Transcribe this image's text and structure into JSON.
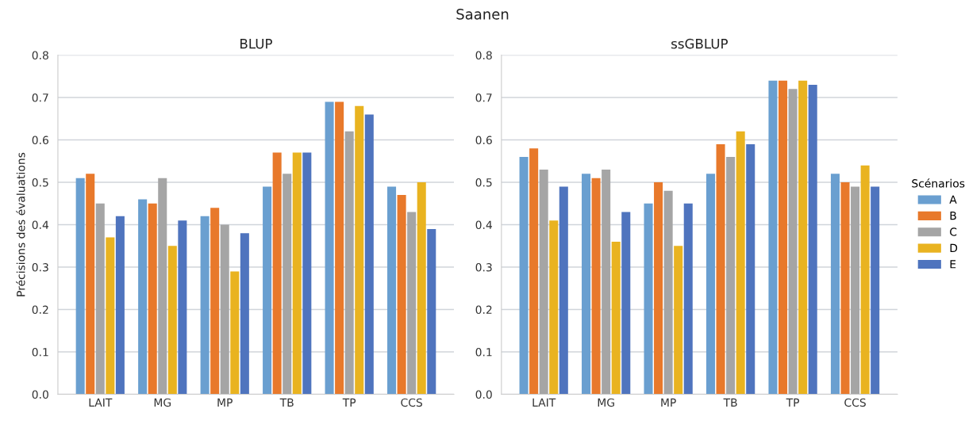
{
  "chart_data": [
    {
      "type": "bar",
      "title": "BLUP",
      "ylabel": "Précisions des évaluations",
      "annotations": [
        "Saanen"
      ],
      "categories": [
        "LAIT",
        "MG",
        "MP",
        "TB",
        "TP",
        "CCS"
      ],
      "ylim": [
        0,
        0.8
      ],
      "yticks": [
        {
          "value": 0,
          "label": "0.0"
        },
        0.1,
        0.2,
        0.3,
        0.4,
        0.5,
        0.6,
        0.7,
        0.8
      ],
      "grid": "y",
      "legend": false,
      "series": [
        {
          "color": "#6a9fd0",
          "values": [
            0.51,
            0.46,
            0.42,
            0.49,
            0.69,
            0.49
          ]
        },
        {
          "color": "#e8792b",
          "values": [
            0.52,
            0.45,
            0.44,
            0.57,
            0.69,
            0.47
          ]
        },
        {
          "color": "#a5a5a5",
          "values": [
            0.45,
            0.51,
            0.4,
            0.52,
            0.62,
            0.43
          ]
        },
        {
          "color": "#e9b320",
          "values": [
            0.37,
            0.35,
            0.29,
            0.57,
            0.68,
            0.5
          ]
        },
        {
          "color": "#4f74be",
          "values": [
            0.42,
            0.41,
            0.38,
            0.57,
            0.66,
            0.39
          ]
        }
      ]
    },
    {
      "type": "bar",
      "title": "ssGBLUP",
      "legend_title": "Scénarios",
      "categories": [
        "LAIT",
        "MG",
        "MP",
        "TB",
        "TP",
        "CCS"
      ],
      "ylim": [
        0,
        0.8
      ],
      "yticks": [
        {
          "value": 0,
          "label": "0.0"
        },
        0.1,
        0.2,
        0.3,
        0.4,
        0.5,
        0.6,
        0.7,
        0.8
      ],
      "grid": "y",
      "legend": "right",
      "series": [
        {
          "name": "A",
          "color": "#6a9fd0",
          "values": [
            0.56,
            0.52,
            0.45,
            0.52,
            0.74,
            0.52
          ]
        },
        {
          "name": "B",
          "color": "#e8792b",
          "values": [
            0.58,
            0.51,
            0.5,
            0.59,
            0.74,
            0.5
          ]
        },
        {
          "name": "C",
          "color": "#a5a5a5",
          "values": [
            0.53,
            0.53,
            0.48,
            0.56,
            0.72,
            0.49
          ]
        },
        {
          "name": "D",
          "color": "#e9b320",
          "values": [
            0.41,
            0.36,
            0.35,
            0.62,
            0.74,
            0.54
          ]
        },
        {
          "name": "E",
          "color": "#4f74be",
          "values": [
            0.49,
            0.43,
            0.45,
            0.59,
            0.73,
            0.49
          ]
        }
      ]
    }
  ]
}
